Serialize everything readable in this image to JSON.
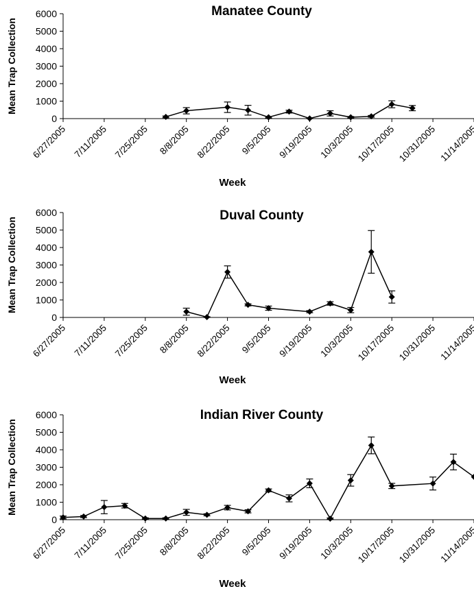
{
  "chart_data": [
    {
      "type": "line",
      "title": "Manatee County",
      "xlabel": "Week",
      "ylabel": "Mean Trap Collection",
      "ylim": [
        0,
        6000
      ],
      "yticks": [
        0,
        1000,
        2000,
        3000,
        4000,
        5000,
        6000
      ],
      "xticks": [
        "6/27/2005",
        "7/11/2005",
        "7/25/2005",
        "8/8/2005",
        "8/22/2005",
        "9/5/2005",
        "9/19/2005",
        "10/3/2005",
        "10/17/2005",
        "10/31/2005",
        "11/14/2005"
      ],
      "grid": false,
      "series": [
        {
          "x": [
            "8/1/2005",
            "8/8/2005",
            "8/22/2005",
            "8/29/2005",
            "9/5/2005",
            "9/12/2005",
            "9/19/2005",
            "9/26/2005",
            "10/3/2005",
            "10/10/2005",
            "10/17/2005",
            "10/24/2005"
          ],
          "values": [
            100,
            450,
            650,
            480,
            80,
            400,
            10,
            300,
            80,
            130,
            820,
            600
          ],
          "error": [
            50,
            180,
            300,
            280,
            40,
            80,
            10,
            150,
            40,
            50,
            200,
            150
          ]
        }
      ]
    },
    {
      "type": "line",
      "title": "Duval County",
      "xlabel": "Week",
      "ylabel": "Mean Trap Collection",
      "ylim": [
        0,
        6000
      ],
      "yticks": [
        0,
        1000,
        2000,
        3000,
        4000,
        5000,
        6000
      ],
      "xticks": [
        "6/27/2005",
        "7/11/2005",
        "7/25/2005",
        "8/8/2005",
        "8/22/2005",
        "9/5/2005",
        "9/19/2005",
        "10/3/2005",
        "10/17/2005",
        "10/31/2005",
        "11/14/2005"
      ],
      "grid": false,
      "series": [
        {
          "x": [
            "8/8/2005",
            "8/15/2005",
            "8/22/2005",
            "8/29/2005",
            "9/5/2005",
            "9/19/2005",
            "9/26/2005",
            "10/3/2005",
            "10/10/2005",
            "10/17/2005"
          ],
          "values": [
            330,
            20,
            2600,
            720,
            530,
            330,
            800,
            420,
            3750,
            1170
          ],
          "error": [
            200,
            20,
            350,
            60,
            120,
            60,
            100,
            150,
            1220,
            350
          ]
        }
      ]
    },
    {
      "type": "line",
      "title": "Indian River County",
      "xlabel": "Week",
      "ylabel": "Mean Trap Collection",
      "ylim": [
        0,
        6000
      ],
      "yticks": [
        0,
        1000,
        2000,
        3000,
        4000,
        5000,
        6000
      ],
      "xticks": [
        "6/27/2005",
        "7/11/2005",
        "7/25/2005",
        "8/8/2005",
        "8/22/2005",
        "9/5/2005",
        "9/19/2005",
        "10/3/2005",
        "10/17/2005",
        "10/31/2005",
        "11/14/2005"
      ],
      "grid": false,
      "series": [
        {
          "x": [
            "6/27/2005",
            "7/4/2005",
            "7/11/2005",
            "7/18/2005",
            "7/25/2005",
            "8/1/2005",
            "8/8/2005",
            "8/15/2005",
            "8/22/2005",
            "8/29/2005",
            "9/5/2005",
            "9/12/2005",
            "9/19/2005",
            "9/26/2005",
            "10/3/2005",
            "10/10/2005",
            "10/17/2005",
            "10/31/2005",
            "11/7/2005",
            "11/14/2005"
          ],
          "values": [
            130,
            180,
            720,
            800,
            70,
            70,
            420,
            280,
            690,
            480,
            1680,
            1220,
            2080,
            60,
            2250,
            4250,
            1930,
            2070,
            3300,
            2450
          ],
          "error": [
            80,
            60,
            380,
            130,
            40,
            40,
            170,
            60,
            130,
            90,
            80,
            200,
            250,
            40,
            330,
            480,
            150,
            370,
            450,
            0
          ]
        }
      ]
    }
  ]
}
